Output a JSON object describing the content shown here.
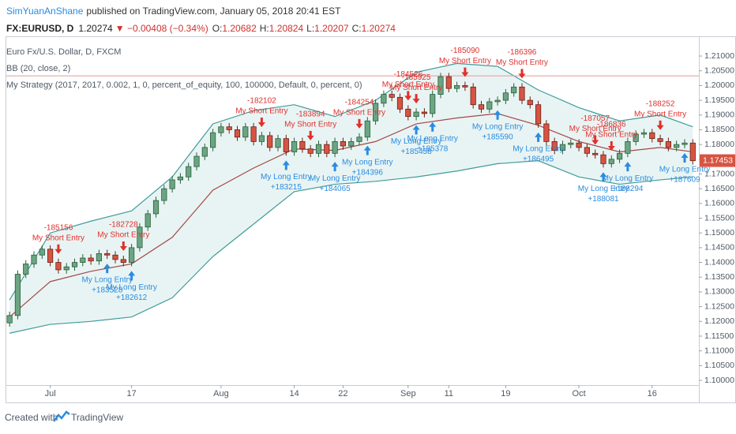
{
  "header": {
    "author": "SimYuanAnShane",
    "published": "published on TradingView.com, January 05, 2018 20:41 EST",
    "symbol": "FX:EURUSD, D",
    "price": "1.20274",
    "change": "▼ −0.00408 (−0.34%)",
    "open_label": "O:",
    "open": "1.20682",
    "high_label": "H:",
    "high": "1.20824",
    "low_label": "L:",
    "low": "1.20207",
    "close_label": "C:",
    "close": "1.20274"
  },
  "footer": {
    "created": "Created with",
    "brand": "TradingView"
  },
  "chart_data": {
    "type": "candlestick",
    "legend": [
      "Euro Fx/U.S. Dollar, D, FXCM",
      "BB (20, close, 2)",
      "My Strategy (2017, 2017, 0.002, 1, 0, percent_of_equity, 100, 100000, Default, 0, percent, 0)"
    ],
    "xlim": [
      -0.4,
      84.75
    ],
    "ylim": [
      1.0984,
      1.2167
    ],
    "xticks": [
      {
        "value": 5,
        "label": "Jul"
      },
      {
        "value": 15,
        "label": "17"
      },
      {
        "value": 26,
        "label": "Aug"
      },
      {
        "value": 35,
        "label": "14"
      },
      {
        "value": 41,
        "label": "22"
      },
      {
        "value": 49,
        "label": "Sep"
      },
      {
        "value": 54,
        "label": "11"
      },
      {
        "value": 61,
        "label": "19"
      },
      {
        "value": 70,
        "label": "Oct"
      },
      {
        "value": 79,
        "label": "16"
      }
    ],
    "yticks": [
      {
        "value": 1.1,
        "label": "1.10000"
      },
      {
        "value": 1.105,
        "label": "1.10500"
      },
      {
        "value": 1.11,
        "label": "1.11000"
      },
      {
        "value": 1.115,
        "label": "1.11500"
      },
      {
        "value": 1.12,
        "label": "1.12000"
      },
      {
        "value": 1.125,
        "label": "1.12500"
      },
      {
        "value": 1.13,
        "label": "1.13000"
      },
      {
        "value": 1.135,
        "label": "1.13500"
      },
      {
        "value": 1.14,
        "label": "1.14000"
      },
      {
        "value": 1.145,
        "label": "1.14500"
      },
      {
        "value": 1.15,
        "label": "1.15000"
      },
      {
        "value": 1.155,
        "label": "1.15500"
      },
      {
        "value": 1.16,
        "label": "1.16000"
      },
      {
        "value": 1.165,
        "label": "1.16500"
      },
      {
        "value": 1.17,
        "label": "1.17000"
      },
      {
        "value": 1.175,
        "label": "1.17500"
      },
      {
        "value": 1.18,
        "label": "1.18000"
      },
      {
        "value": 1.185,
        "label": "1.18500"
      },
      {
        "value": 1.19,
        "label": "1.19000"
      },
      {
        "value": 1.195,
        "label": "1.19500"
      },
      {
        "value": 1.2,
        "label": "1.20000"
      },
      {
        "value": 1.205,
        "label": "1.20500"
      },
      {
        "value": 1.21,
        "label": "1.21000"
      }
    ],
    "candles": [
      [
        1.1195,
        1.1233,
        1.1182,
        1.122
      ],
      [
        1.122,
        1.1373,
        1.1207,
        1.136
      ],
      [
        1.136,
        1.1408,
        1.1347,
        1.1395
      ],
      [
        1.1395,
        1.1438,
        1.1382,
        1.1425
      ],
      [
        1.1425,
        1.1458,
        1.1412,
        1.1445
      ],
      [
        1.1445,
        1.1458,
        1.1387,
        1.14
      ],
      [
        1.14,
        1.1413,
        1.1362,
        1.1375
      ],
      [
        1.1375,
        1.1398,
        1.1362,
        1.1385
      ],
      [
        1.1385,
        1.1413,
        1.1372,
        1.14
      ],
      [
        1.14,
        1.1428,
        1.1387,
        1.1415
      ],
      [
        1.1415,
        1.1428,
        1.1392,
        1.1405
      ],
      [
        1.1405,
        1.1443,
        1.1392,
        1.143
      ],
      [
        1.143,
        1.1443,
        1.1412,
        1.1425
      ],
      [
        1.1425,
        1.1438,
        1.1397,
        1.141
      ],
      [
        1.141,
        1.1423,
        1.1387,
        1.14
      ],
      [
        1.14,
        1.1463,
        1.1387,
        1.145
      ],
      [
        1.145,
        1.1533,
        1.1437,
        1.152
      ],
      [
        1.152,
        1.1578,
        1.1507,
        1.1565
      ],
      [
        1.1565,
        1.1623,
        1.1552,
        1.161
      ],
      [
        1.161,
        1.1663,
        1.1597,
        1.165
      ],
      [
        1.165,
        1.1693,
        1.1637,
        1.168
      ],
      [
        1.168,
        1.1703,
        1.1667,
        1.169
      ],
      [
        1.169,
        1.1738,
        1.1677,
        1.1725
      ],
      [
        1.1725,
        1.1773,
        1.1712,
        1.176
      ],
      [
        1.176,
        1.1803,
        1.1747,
        1.179
      ],
      [
        1.179,
        1.1853,
        1.1777,
        1.184
      ],
      [
        1.184,
        1.1873,
        1.1827,
        1.186
      ],
      [
        1.186,
        1.1873,
        1.1837,
        1.185
      ],
      [
        1.185,
        1.1863,
        1.1812,
        1.1825
      ],
      [
        1.1825,
        1.1873,
        1.1812,
        1.186
      ],
      [
        1.186,
        1.1873,
        1.1797,
        1.181
      ],
      [
        1.181,
        1.1843,
        1.1797,
        1.183
      ],
      [
        1.183,
        1.1843,
        1.1777,
        1.179
      ],
      [
        1.179,
        1.1833,
        1.1777,
        1.182
      ],
      [
        1.182,
        1.1833,
        1.1762,
        1.1775
      ],
      [
        1.1775,
        1.1823,
        1.1762,
        1.181
      ],
      [
        1.181,
        1.1823,
        1.1772,
        1.1785
      ],
      [
        1.1785,
        1.1798,
        1.1757,
        1.177
      ],
      [
        1.177,
        1.1813,
        1.1757,
        1.18
      ],
      [
        1.18,
        1.1813,
        1.1757,
        1.177
      ],
      [
        1.177,
        1.1823,
        1.1757,
        1.181
      ],
      [
        1.181,
        1.1823,
        1.1782,
        1.1795
      ],
      [
        1.1795,
        1.1823,
        1.1782,
        1.181
      ],
      [
        1.181,
        1.1838,
        1.1797,
        1.1825
      ],
      [
        1.1825,
        1.1893,
        1.1812,
        1.188
      ],
      [
        1.188,
        1.1953,
        1.1867,
        1.194
      ],
      [
        1.194,
        1.1983,
        1.1927,
        1.197
      ],
      [
        1.197,
        1.1983,
        1.1947,
        1.196
      ],
      [
        1.196,
        1.1973,
        1.1907,
        1.192
      ],
      [
        1.192,
        1.1933,
        1.1882,
        1.1895
      ],
      [
        1.1895,
        1.1923,
        1.1882,
        1.191
      ],
      [
        1.191,
        1.1923,
        1.1892,
        1.1905
      ],
      [
        1.1905,
        1.1983,
        1.1892,
        1.197
      ],
      [
        1.197,
        1.2043,
        1.1957,
        1.203
      ],
      [
        1.203,
        1.2043,
        1.1977,
        1.199
      ],
      [
        1.199,
        1.2013,
        1.1977,
        1.2
      ],
      [
        1.2,
        1.2013,
        1.1982,
        1.1995
      ],
      [
        1.1995,
        1.2008,
        1.1922,
        1.1935
      ],
      [
        1.1935,
        1.1948,
        1.1907,
        1.192
      ],
      [
        1.192,
        1.1958,
        1.1907,
        1.1945
      ],
      [
        1.1945,
        1.1963,
        1.1932,
        1.195
      ],
      [
        1.195,
        1.1988,
        1.1937,
        1.1975
      ],
      [
        1.1975,
        1.2008,
        1.1962,
        1.1995
      ],
      [
        1.1995,
        1.2008,
        1.1937,
        1.195
      ],
      [
        1.195,
        1.1963,
        1.1922,
        1.1935
      ],
      [
        1.1935,
        1.1948,
        1.1857,
        1.187
      ],
      [
        1.187,
        1.1883,
        1.1797,
        1.181
      ],
      [
        1.181,
        1.1823,
        1.1767,
        1.178
      ],
      [
        1.178,
        1.1813,
        1.1767,
        1.18
      ],
      [
        1.18,
        1.1818,
        1.1787,
        1.1805
      ],
      [
        1.1805,
        1.1818,
        1.1777,
        1.179
      ],
      [
        1.179,
        1.1803,
        1.1757,
        1.177
      ],
      [
        1.177,
        1.1783,
        1.1752,
        1.1765
      ],
      [
        1.1765,
        1.1778,
        1.1722,
        1.1735
      ],
      [
        1.1735,
        1.1763,
        1.1722,
        1.175
      ],
      [
        1.175,
        1.1783,
        1.1737,
        1.177
      ],
      [
        1.177,
        1.1823,
        1.1757,
        1.181
      ],
      [
        1.181,
        1.1848,
        1.1797,
        1.1835
      ],
      [
        1.1835,
        1.1853,
        1.1822,
        1.184
      ],
      [
        1.184,
        1.1853,
        1.1807,
        1.182
      ],
      [
        1.182,
        1.1833,
        1.1797,
        1.181
      ],
      [
        1.181,
        1.1823,
        1.1777,
        1.179
      ],
      [
        1.179,
        1.1813,
        1.1777,
        1.18
      ],
      [
        1.18,
        1.1818,
        1.1787,
        1.1805
      ],
      [
        1.1805,
        1.1818,
        1.1732,
        1.1745
      ]
    ],
    "bands": {
      "x": [
        0,
        5,
        10,
        15,
        20,
        25,
        30,
        35,
        40,
        45,
        50,
        55,
        60,
        65,
        70,
        75,
        80,
        84
      ],
      "upper": [
        1.1273,
        1.15,
        1.154,
        1.1575,
        1.169,
        1.187,
        1.1915,
        1.1935,
        1.1895,
        1.195,
        1.2045,
        1.2075,
        1.2065,
        1.1985,
        1.1925,
        1.188,
        1.19,
        1.186
      ],
      "basis": [
        1.1215,
        1.1335,
        1.137,
        1.1395,
        1.1485,
        1.1645,
        1.172,
        1.1785,
        1.178,
        1.181,
        1.187,
        1.189,
        1.1905,
        1.1865,
        1.181,
        1.1775,
        1.179,
        1.1775
      ],
      "lower": [
        1.116,
        1.119,
        1.12,
        1.1215,
        1.128,
        1.142,
        1.153,
        1.164,
        1.1665,
        1.1675,
        1.169,
        1.171,
        1.1735,
        1.1745,
        1.169,
        1.1665,
        1.168,
        1.169
      ]
    },
    "short_entries": {
      "name": "My Short Entry",
      "color": "#e0302d",
      "x": [
        6,
        14,
        31,
        37,
        43,
        49,
        50,
        56,
        63,
        72,
        74,
        80
      ],
      "values": [
        -185156,
        -182728,
        -182102,
        -183894,
        -184254,
        -184526,
        -185925,
        -185090,
        -186396,
        -187057,
        -186836,
        -188252
      ]
    },
    "long_entries": {
      "name": "My Long Entry",
      "color": "#2a8be0",
      "x": [
        12,
        15,
        34,
        40,
        44,
        50,
        52,
        60,
        65,
        73,
        76,
        83
      ],
      "values": [
        183528,
        182612,
        183215,
        184065,
        184396,
        185458,
        185378,
        185590,
        186495,
        188081,
        188294,
        187609
      ],
      "value_labels": [
        "+183528",
        "+182612",
        "+183215",
        "+184065",
        "+184396",
        "+185458",
        "+185378",
        "+185590",
        "+186495",
        "+188081",
        "+188294",
        "+187609"
      ]
    },
    "price_line": 1.2033,
    "last_price": 1.17453,
    "colors": {
      "up": "#6ba583",
      "up_border": "#2b5e3a",
      "down": "#d75442",
      "down_border": "#6b1f16",
      "band": "#3f9c9c",
      "band_fill": "#e8f4f3",
      "basis": "#a34848",
      "price_line": "#e59a9a",
      "last_price": "#d75442"
    }
  }
}
